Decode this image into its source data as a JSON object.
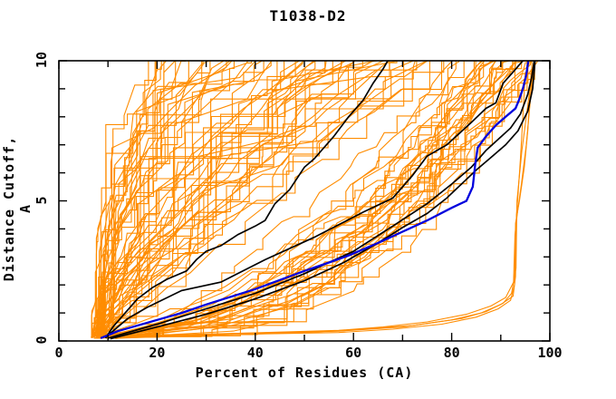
{
  "colors": {
    "orange": "#ff8c00",
    "blue": "#0000dd",
    "black": "#000000",
    "frame": "#000000",
    "background": "#ffffff"
  },
  "chart_data": {
    "type": "line",
    "title": "T1038-D2",
    "xlabel": "Percent of Residues (CA)",
    "ylabel": "Distance Cutoff, A",
    "xlim": [
      0,
      100
    ],
    "ylim": [
      0,
      10
    ],
    "grid": false,
    "legend": null,
    "x_labeled_ticks": [
      0,
      20,
      40,
      60,
      80,
      100
    ],
    "x_minor_tick_step": 10,
    "y_labeled_ticks": [
      0,
      5,
      10
    ],
    "y_minor_tick_step": 1,
    "named_series": [
      {
        "name": "model-black-1",
        "color": "black",
        "width": 1.7,
        "points": [
          [
            9.5,
            0.1
          ],
          [
            11,
            0.5
          ],
          [
            13.5,
            1.0
          ],
          [
            16,
            1.5
          ],
          [
            19,
            1.9
          ],
          [
            22,
            2.2
          ],
          [
            26,
            2.5
          ],
          [
            28,
            2.9
          ],
          [
            30,
            3.2
          ],
          [
            33,
            3.4
          ],
          [
            36.5,
            3.8
          ],
          [
            40,
            4.1
          ],
          [
            42,
            4.3
          ],
          [
            44,
            4.9
          ],
          [
            47,
            5.4
          ],
          [
            50,
            6.2
          ],
          [
            52,
            6.5
          ],
          [
            56,
            7.3
          ],
          [
            59,
            8.0
          ],
          [
            62,
            8.6
          ],
          [
            64,
            9.2
          ],
          [
            66,
            9.7
          ],
          [
            67,
            10
          ]
        ]
      },
      {
        "name": "model-black-2",
        "color": "black",
        "width": 1.7,
        "points": [
          [
            10,
            0.2
          ],
          [
            14,
            0.8
          ],
          [
            18,
            1.2
          ],
          [
            25,
            1.8
          ],
          [
            33,
            2.1
          ],
          [
            42,
            2.9
          ],
          [
            52,
            3.7
          ],
          [
            62,
            4.6
          ],
          [
            68,
            5.1
          ],
          [
            72,
            5.9
          ],
          [
            75,
            6.6
          ],
          [
            79,
            7.0
          ],
          [
            84,
            7.8
          ],
          [
            87,
            8.3
          ],
          [
            89,
            8.5
          ],
          [
            90.5,
            9.2
          ],
          [
            92.5,
            9.6
          ],
          [
            94.5,
            10
          ]
        ]
      },
      {
        "name": "model-black-3",
        "color": "black",
        "width": 1.7,
        "points": [
          [
            10.5,
            0.08
          ],
          [
            20,
            0.5
          ],
          [
            30,
            0.95
          ],
          [
            40,
            1.5
          ],
          [
            50,
            2.15
          ],
          [
            58,
            2.8
          ],
          [
            65,
            3.5
          ],
          [
            70,
            4.05
          ],
          [
            75,
            4.55
          ],
          [
            79,
            5.1
          ],
          [
            82,
            5.6
          ],
          [
            85,
            6.1
          ],
          [
            88,
            6.55
          ],
          [
            91,
            7.0
          ],
          [
            93.5,
            7.5
          ],
          [
            95.5,
            8.2
          ],
          [
            96.5,
            9.0
          ],
          [
            97,
            10
          ]
        ]
      },
      {
        "name": "model-black-4",
        "color": "black",
        "width": 1.7,
        "points": [
          [
            10,
            0.1
          ],
          [
            20,
            0.6
          ],
          [
            30,
            1.15
          ],
          [
            40,
            1.7
          ],
          [
            50,
            2.4
          ],
          [
            60,
            3.2
          ],
          [
            68,
            4.1
          ],
          [
            75,
            4.9
          ],
          [
            80,
            5.6
          ],
          [
            84,
            6.2
          ],
          [
            87,
            6.8
          ],
          [
            89.5,
            7.2
          ],
          [
            92,
            7.6
          ],
          [
            94,
            8.1
          ],
          [
            95.5,
            8.8
          ],
          [
            96.3,
            9.4
          ],
          [
            96.8,
            10
          ]
        ]
      },
      {
        "name": "model-blue",
        "color": "blue",
        "width": 2.3,
        "points": [
          [
            8.5,
            0.1
          ],
          [
            12,
            0.35
          ],
          [
            20,
            0.75
          ],
          [
            25,
            1.0
          ],
          [
            30,
            1.3
          ],
          [
            40,
            1.85
          ],
          [
            50,
            2.5
          ],
          [
            55,
            2.8
          ],
          [
            59,
            3.05
          ],
          [
            65,
            3.5
          ],
          [
            70,
            3.9
          ],
          [
            75,
            4.3
          ],
          [
            80,
            4.75
          ],
          [
            83,
            5.0
          ],
          [
            84.3,
            5.5
          ],
          [
            84.8,
            6.3
          ],
          [
            85.3,
            6.9
          ],
          [
            87,
            7.3
          ],
          [
            89,
            7.7
          ],
          [
            91,
            8.0
          ],
          [
            93,
            8.3
          ],
          [
            93.7,
            8.6
          ],
          [
            94.5,
            9.0
          ],
          [
            95.2,
            9.5
          ],
          [
            95.6,
            10
          ]
        ]
      },
      {
        "name": "orange-outlier-1",
        "color": "orange",
        "width": 1.1,
        "points": [
          [
            10,
            0.15
          ],
          [
            20,
            0.2
          ],
          [
            30,
            0.25
          ],
          [
            45,
            0.3
          ],
          [
            57,
            0.35
          ],
          [
            70,
            0.5
          ],
          [
            80,
            0.75
          ],
          [
            86,
            1.0
          ],
          [
            90,
            1.3
          ],
          [
            92.5,
            1.6
          ],
          [
            93,
            2.3
          ],
          [
            93.2,
            4.5
          ],
          [
            93.5,
            5.2
          ],
          [
            94,
            6.5
          ],
          [
            94.5,
            8.0
          ],
          [
            95,
            9.6
          ]
        ]
      },
      {
        "name": "orange-outlier-2",
        "color": "orange",
        "width": 1.1,
        "points": [
          [
            11,
            0.1
          ],
          [
            25,
            0.18
          ],
          [
            40,
            0.25
          ],
          [
            57,
            0.3
          ],
          [
            68,
            0.42
          ],
          [
            78,
            0.6
          ],
          [
            85,
            0.85
          ],
          [
            89.5,
            1.15
          ],
          [
            92,
            1.45
          ],
          [
            92.8,
            2.0
          ],
          [
            93,
            4.2
          ],
          [
            93.8,
            5.0
          ],
          [
            94.8,
            6.2
          ],
          [
            95.5,
            7.5
          ],
          [
            96.2,
            9.7
          ]
        ]
      },
      {
        "name": "orange-outlier-3",
        "color": "orange",
        "width": 1.1,
        "points": [
          [
            9,
            0.12
          ],
          [
            22,
            0.2
          ],
          [
            38,
            0.28
          ],
          [
            57,
            0.38
          ],
          [
            66,
            0.5
          ],
          [
            75,
            0.68
          ],
          [
            83,
            0.95
          ],
          [
            88,
            1.25
          ],
          [
            91,
            1.55
          ],
          [
            92.6,
            2.1
          ],
          [
            92.9,
            3.8
          ],
          [
            93.4,
            4.6
          ],
          [
            94.2,
            5.6
          ],
          [
            95.2,
            7.0
          ],
          [
            96.5,
            9.5
          ]
        ]
      },
      {
        "name": "orange-outlier-4",
        "color": "orange",
        "width": 1.1,
        "points": [
          [
            12,
            0.1
          ],
          [
            30,
            0.2
          ],
          [
            50,
            0.3
          ],
          [
            60,
            0.4
          ],
          [
            72,
            0.55
          ],
          [
            82,
            0.8
          ],
          [
            87,
            1.05
          ],
          [
            90.5,
            1.35
          ],
          [
            92.2,
            1.7
          ],
          [
            93.1,
            2.6
          ],
          [
            93.3,
            5.0
          ],
          [
            94.3,
            6.8
          ],
          [
            95.8,
            8.8
          ],
          [
            96.8,
            9.7
          ]
        ]
      }
    ],
    "orange_model_curves_params_x0_x10_shape": [
      [
        6.5,
        18,
        2.6
      ],
      [
        7.2,
        20,
        2.2
      ],
      [
        8.0,
        21,
        1.9
      ],
      [
        7.5,
        23,
        2.8
      ],
      [
        8.2,
        24,
        2.1
      ],
      [
        6.8,
        26,
        2.4
      ],
      [
        9.0,
        27,
        1.8
      ],
      [
        7.2,
        28,
        2.9
      ],
      [
        8.5,
        30,
        2.0
      ],
      [
        7.8,
        31,
        2.5
      ],
      [
        6.6,
        32,
        2.2
      ],
      [
        8.8,
        33,
        1.7
      ],
      [
        7.4,
        34,
        2.7
      ],
      [
        9.2,
        35,
        2.3
      ],
      [
        6.9,
        36,
        1.9
      ],
      [
        8.1,
        37,
        2.6
      ],
      [
        7.6,
        38,
        2.1
      ],
      [
        8.9,
        39,
        2.4
      ],
      [
        7.1,
        40,
        1.8
      ],
      [
        8.4,
        41,
        2.2
      ],
      [
        6.7,
        42,
        2.0
      ],
      [
        9.4,
        25,
        2.5
      ],
      [
        7.9,
        29,
        1.6
      ],
      [
        8.6,
        22,
        2.3
      ],
      [
        7.0,
        43,
        1.5
      ],
      [
        8.3,
        44,
        1.1
      ],
      [
        9.1,
        45,
        1.7
      ],
      [
        7.7,
        46,
        1.3
      ],
      [
        8.0,
        47,
        0.9
      ],
      [
        6.8,
        48,
        1.6
      ],
      [
        9.3,
        49,
        1.2
      ],
      [
        7.4,
        50,
        1.8
      ],
      [
        8.6,
        51,
        1.0
      ],
      [
        7.1,
        52,
        1.4
      ],
      [
        8.9,
        53,
        1.7
      ],
      [
        6.6,
        54,
        1.1
      ],
      [
        7.8,
        55,
        1.5
      ],
      [
        9.0,
        56,
        0.9
      ],
      [
        8.2,
        57,
        1.3
      ],
      [
        7.3,
        58,
        1.6
      ],
      [
        8.7,
        59,
        1.2
      ],
      [
        6.9,
        60,
        1.8
      ],
      [
        7.6,
        61,
        1.0
      ],
      [
        8.4,
        62,
        1.4
      ],
      [
        9.2,
        63,
        1.7
      ],
      [
        7.0,
        64,
        1.1
      ],
      [
        8.1,
        65,
        1.5
      ],
      [
        7.5,
        66,
        0.9
      ],
      [
        8.8,
        67,
        1.3
      ],
      [
        6.7,
        68,
        1.6
      ],
      [
        7.9,
        69,
        1.2
      ],
      [
        9.1,
        70,
        1.0
      ],
      [
        7.2,
        71,
        1.4
      ],
      [
        8.5,
        72,
        1.7
      ],
      [
        6.8,
        73,
        1.1
      ],
      [
        7.7,
        74,
        1.5
      ],
      [
        8.3,
        75,
        0.9
      ],
      [
        9.0,
        76,
        1.3
      ],
      [
        7.4,
        77,
        1.6
      ],
      [
        8.0,
        78,
        1.2
      ],
      [
        8.0,
        80,
        0.7
      ],
      [
        9.5,
        81,
        0.55
      ],
      [
        10.5,
        82,
        0.45
      ],
      [
        8.5,
        83,
        0.62
      ],
      [
        11.0,
        84,
        0.38
      ],
      [
        9.0,
        85,
        0.52
      ],
      [
        12.0,
        85,
        0.33
      ],
      [
        8.2,
        86,
        0.58
      ],
      [
        10.0,
        86,
        0.42
      ],
      [
        9.7,
        87,
        0.65
      ],
      [
        11.5,
        87,
        0.35
      ],
      [
        8.8,
        88,
        0.48
      ],
      [
        10.8,
        88,
        0.55
      ],
      [
        9.2,
        89,
        0.4
      ],
      [
        12.5,
        89,
        0.6
      ],
      [
        8.4,
        90,
        0.33
      ],
      [
        10.2,
        90,
        0.5
      ],
      [
        9.9,
        91,
        0.44
      ],
      [
        11.2,
        91,
        0.58
      ],
      [
        8.6,
        92,
        0.36
      ],
      [
        10.6,
        92,
        0.52
      ],
      [
        9.4,
        93,
        0.46
      ],
      [
        12.2,
        93,
        0.62
      ],
      [
        8.9,
        94,
        0.38
      ],
      [
        11.8,
        94,
        0.55
      ],
      [
        10.4,
        95,
        0.42
      ],
      [
        9.6,
        95,
        0.3
      ],
      [
        13.0,
        96,
        0.5
      ],
      [
        8.7,
        96,
        0.35
      ],
      [
        10.9,
        97,
        0.45
      ],
      [
        9.3,
        97,
        0.55
      ],
      [
        11.4,
        96,
        0.4
      ]
    ]
  }
}
